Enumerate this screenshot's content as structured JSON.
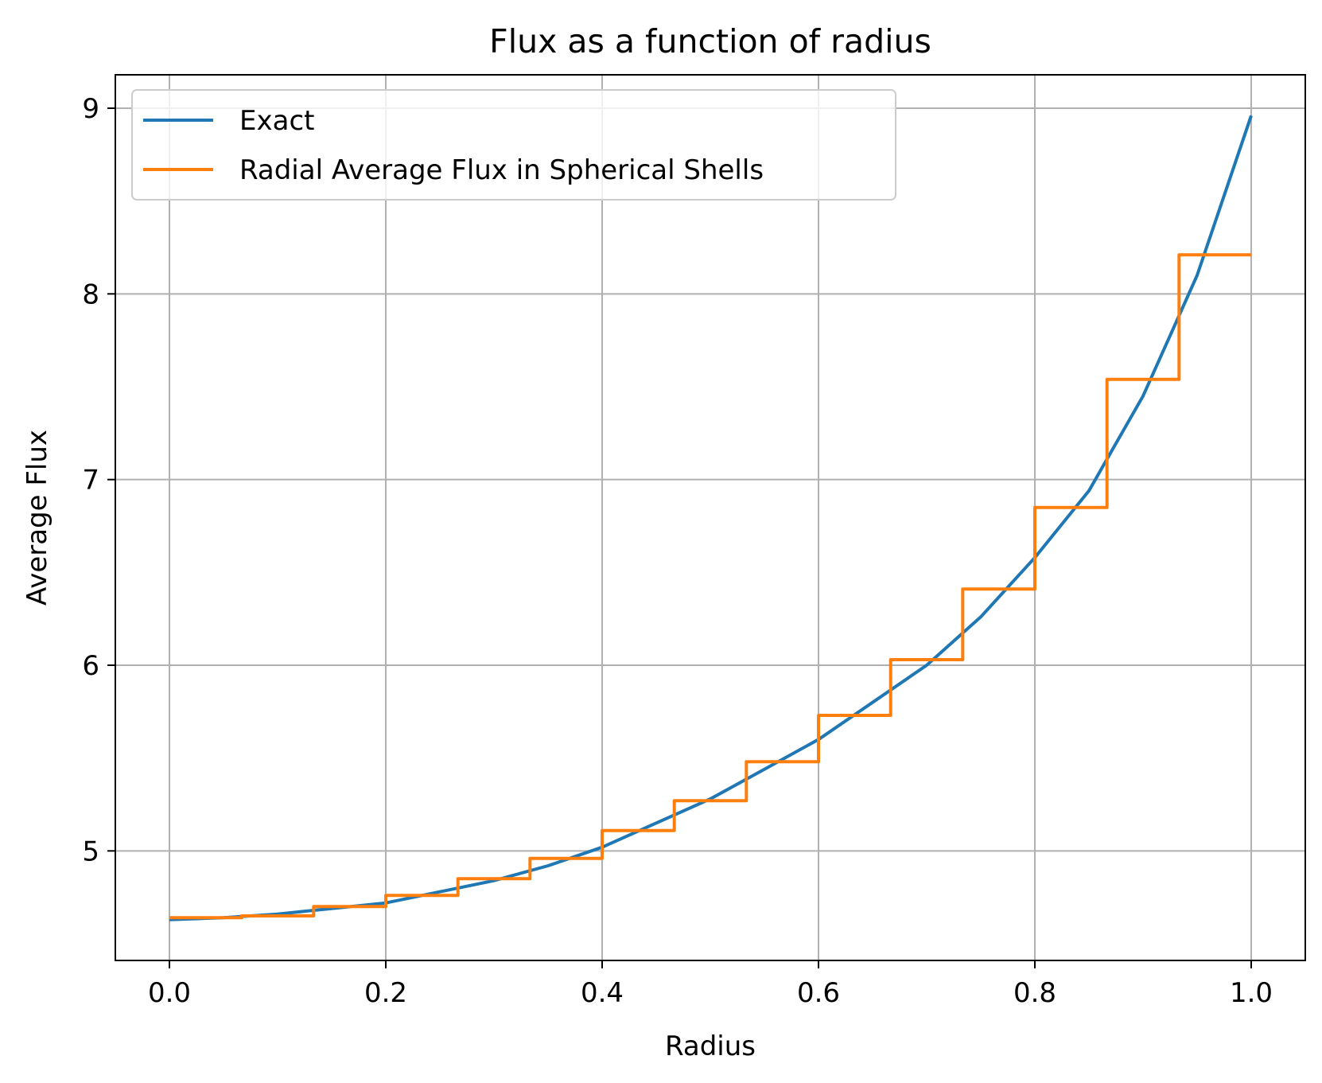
{
  "chart_data": {
    "type": "line",
    "title": "Flux as a function of radius",
    "xlabel": "Radius",
    "ylabel": "Average Flux",
    "xlim": [
      -0.05,
      1.05
    ],
    "ylim": [
      4.41,
      9.18
    ],
    "xticks": [
      0.0,
      0.2,
      0.4,
      0.6,
      0.8,
      1.0
    ],
    "xtick_labels": [
      "0.0",
      "0.2",
      "0.4",
      "0.6",
      "0.8",
      "1.0"
    ],
    "yticks": [
      5,
      6,
      7,
      8,
      9
    ],
    "ytick_labels": [
      "5",
      "6",
      "7",
      "8",
      "9"
    ],
    "grid": true,
    "legend_position": "top-left",
    "series": [
      {
        "name": "Exact",
        "style": "line",
        "color": "#1f77b4",
        "x": [
          0.0,
          0.05,
          0.1,
          0.15,
          0.2,
          0.25,
          0.3,
          0.35,
          0.4,
          0.45,
          0.5,
          0.55,
          0.6,
          0.65,
          0.7,
          0.75,
          0.8,
          0.85,
          0.9,
          0.95,
          1.0
        ],
        "y": [
          4.63,
          4.64,
          4.66,
          4.69,
          4.72,
          4.78,
          4.84,
          4.92,
          5.02,
          5.15,
          5.28,
          5.44,
          5.6,
          5.8,
          6.0,
          6.26,
          6.58,
          6.94,
          7.45,
          8.1,
          8.96
        ]
      },
      {
        "name": "Radial Average Flux in Spherical Shells",
        "style": "step",
        "color": "#ff7f0e",
        "edges": [
          0.0,
          0.0667,
          0.1333,
          0.2,
          0.2667,
          0.3333,
          0.4,
          0.4667,
          0.5333,
          0.6,
          0.6667,
          0.7333,
          0.8,
          0.8667,
          0.9333,
          1.0
        ],
        "values": [
          4.64,
          4.65,
          4.7,
          4.76,
          4.85,
          4.96,
          5.11,
          5.27,
          5.48,
          5.73,
          6.03,
          6.41,
          6.85,
          7.54,
          8.21
        ]
      }
    ]
  }
}
